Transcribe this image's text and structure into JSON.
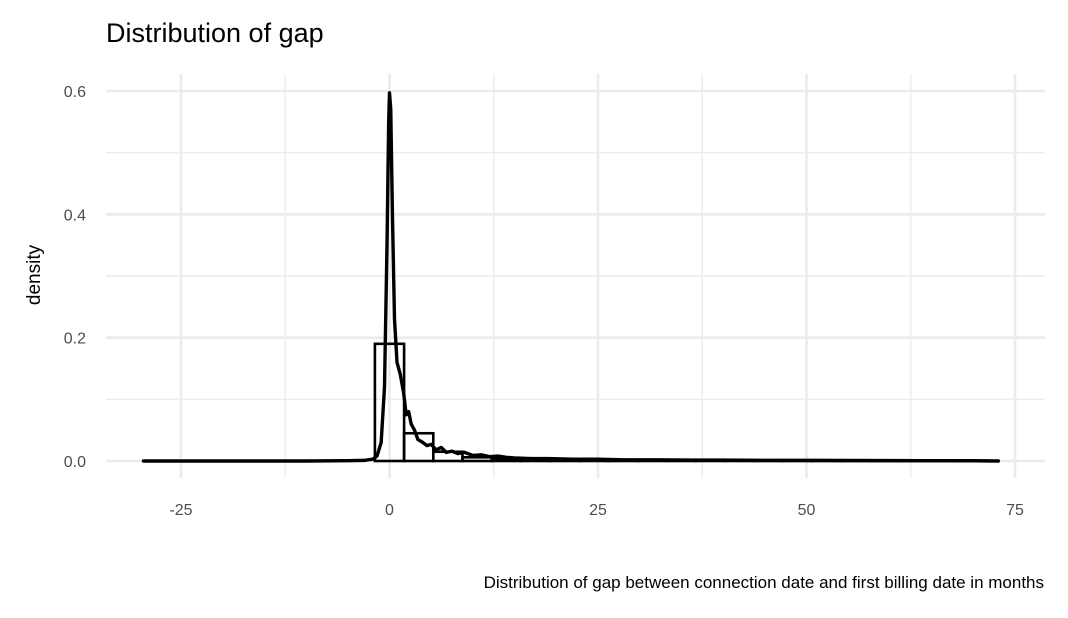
{
  "chart_data": {
    "type": "histogram",
    "title": "Distribution of gap",
    "xlabel": "Distribution of gap between connection date and first billing date in months",
    "ylabel": "density",
    "xlim": [
      -30,
      75
    ],
    "ylim": [
      0,
      0.6
    ],
    "x_ticks": [
      -25,
      0,
      25,
      50,
      75
    ],
    "x_tick_labels": [
      "-25",
      "0",
      "25",
      "50",
      "75"
    ],
    "y_ticks": [
      0,
      0.2,
      0.4,
      0.6
    ],
    "y_tick_labels": [
      "0.0",
      "0.2",
      "0.4",
      "0.6"
    ],
    "grid": true,
    "colors": {
      "line": "#000000",
      "grid": "#ebebeb",
      "tick_text": "#4d4d4d"
    },
    "histogram": {
      "bin_width": 3.5,
      "bins": [
        {
          "x0": -1.75,
          "x1": 1.75,
          "density": 0.19
        },
        {
          "x0": 1.75,
          "x1": 5.25,
          "density": 0.045
        },
        {
          "x0": 5.25,
          "x1": 8.75,
          "density": 0.015
        },
        {
          "x0": 8.75,
          "x1": 12.25,
          "density": 0.006
        },
        {
          "x0": 12.25,
          "x1": 15.75,
          "density": 0.004
        },
        {
          "x0": 15.75,
          "x1": 19.25,
          "density": 0.003
        },
        {
          "x0": 19.25,
          "x1": 22.75,
          "density": 0.002
        },
        {
          "x0": 22.75,
          "x1": 26.25,
          "density": 0.002
        },
        {
          "x0": 26.25,
          "x1": 29.75,
          "density": 0.0015
        },
        {
          "x0": 29.75,
          "x1": 33.25,
          "density": 0.001
        },
        {
          "x0": 33.25,
          "x1": 36.75,
          "density": 0.001
        },
        {
          "x0": 36.75,
          "x1": 40.25,
          "density": 0.001
        },
        {
          "x0": 40.25,
          "x1": 43.75,
          "density": 0.0008
        },
        {
          "x0": 43.75,
          "x1": 47.25,
          "density": 0.0008
        },
        {
          "x0": 47.25,
          "x1": 50.75,
          "density": 0.0006
        },
        {
          "x0": 50.75,
          "x1": 54.25,
          "density": 0.0005
        },
        {
          "x0": 54.25,
          "x1": 57.75,
          "density": 0.0004
        },
        {
          "x0": 57.75,
          "x1": 61.25,
          "density": 0.0003
        },
        {
          "x0": 61.25,
          "x1": 64.75,
          "density": 0.0003
        },
        {
          "x0": 64.75,
          "x1": 68.25,
          "density": 0.0002
        },
        {
          "x0": 68.25,
          "x1": 71.75,
          "density": 0.0002
        }
      ]
    },
    "density_curve": {
      "x": [
        -29.5,
        -20,
        -10,
        -5,
        -3,
        -2,
        -1.5,
        -1,
        -0.6,
        -0.3,
        -0.1,
        0,
        0.15,
        0.35,
        0.6,
        0.9,
        1.3,
        1.7,
        2.0,
        2.3,
        2.6,
        3.0,
        3.4,
        4.0,
        4.5,
        5.0,
        5.6,
        6.2,
        6.8,
        7.5,
        8.2,
        9.0,
        10,
        11,
        12,
        13,
        14,
        15,
        17,
        19,
        22,
        25,
        28,
        32,
        36,
        40,
        45,
        50,
        55,
        60,
        65,
        70,
        73
      ],
      "y": [
        0,
        0,
        0,
        0.0005,
        0.001,
        0.003,
        0.008,
        0.03,
        0.12,
        0.35,
        0.55,
        0.597,
        0.57,
        0.4,
        0.23,
        0.16,
        0.14,
        0.11,
        0.075,
        0.08,
        0.06,
        0.05,
        0.035,
        0.03,
        0.025,
        0.027,
        0.018,
        0.022,
        0.014,
        0.016,
        0.012,
        0.014,
        0.009,
        0.01,
        0.007,
        0.008,
        0.006,
        0.005,
        0.004,
        0.004,
        0.003,
        0.003,
        0.002,
        0.002,
        0.0015,
        0.0015,
        0.001,
        0.001,
        0.0008,
        0.0006,
        0.0005,
        0.0004,
        0
      ]
    }
  }
}
